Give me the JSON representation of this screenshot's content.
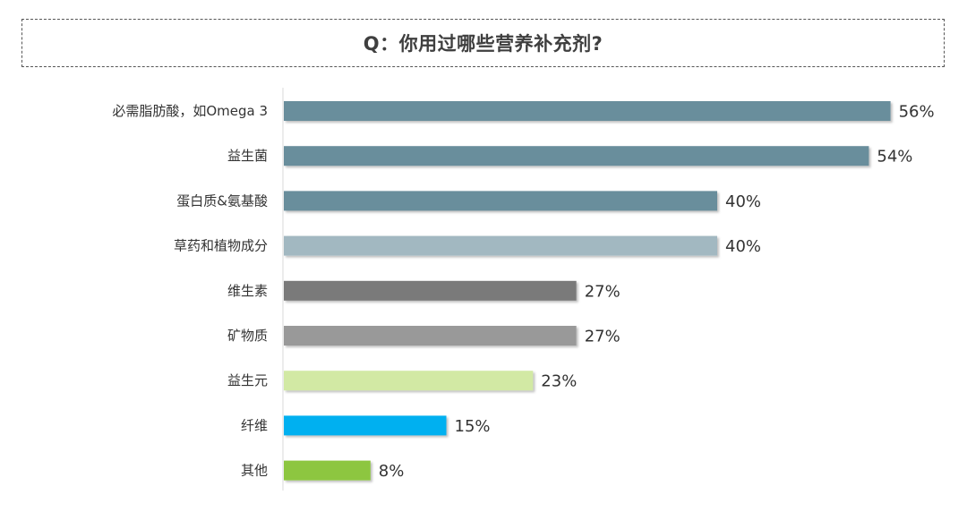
{
  "title": "Q：你用过哪些营养补充剂?",
  "chart_data": {
    "type": "bar",
    "orientation": "horizontal",
    "categories": [
      "必需脂肪酸，如Omega 3",
      "益生菌",
      "蛋白质&氨基酸",
      "草药和植物成分",
      "维生素",
      "矿物质",
      "益生元",
      "纤维",
      "其他"
    ],
    "values": [
      56,
      54,
      40,
      40,
      27,
      27,
      23,
      15,
      8
    ],
    "value_labels": [
      "56%",
      "54%",
      "40%",
      "40%",
      "27%",
      "27%",
      "23%",
      "15%",
      "8%"
    ],
    "unit": "%",
    "bar_colors": [
      "#698e9c",
      "#698e9c",
      "#698e9c",
      "#a2b8c1",
      "#7a7a7a",
      "#999999",
      "#d2e9a4",
      "#00b0f0",
      "#8dc63f"
    ],
    "grid": false,
    "legend": "none"
  }
}
